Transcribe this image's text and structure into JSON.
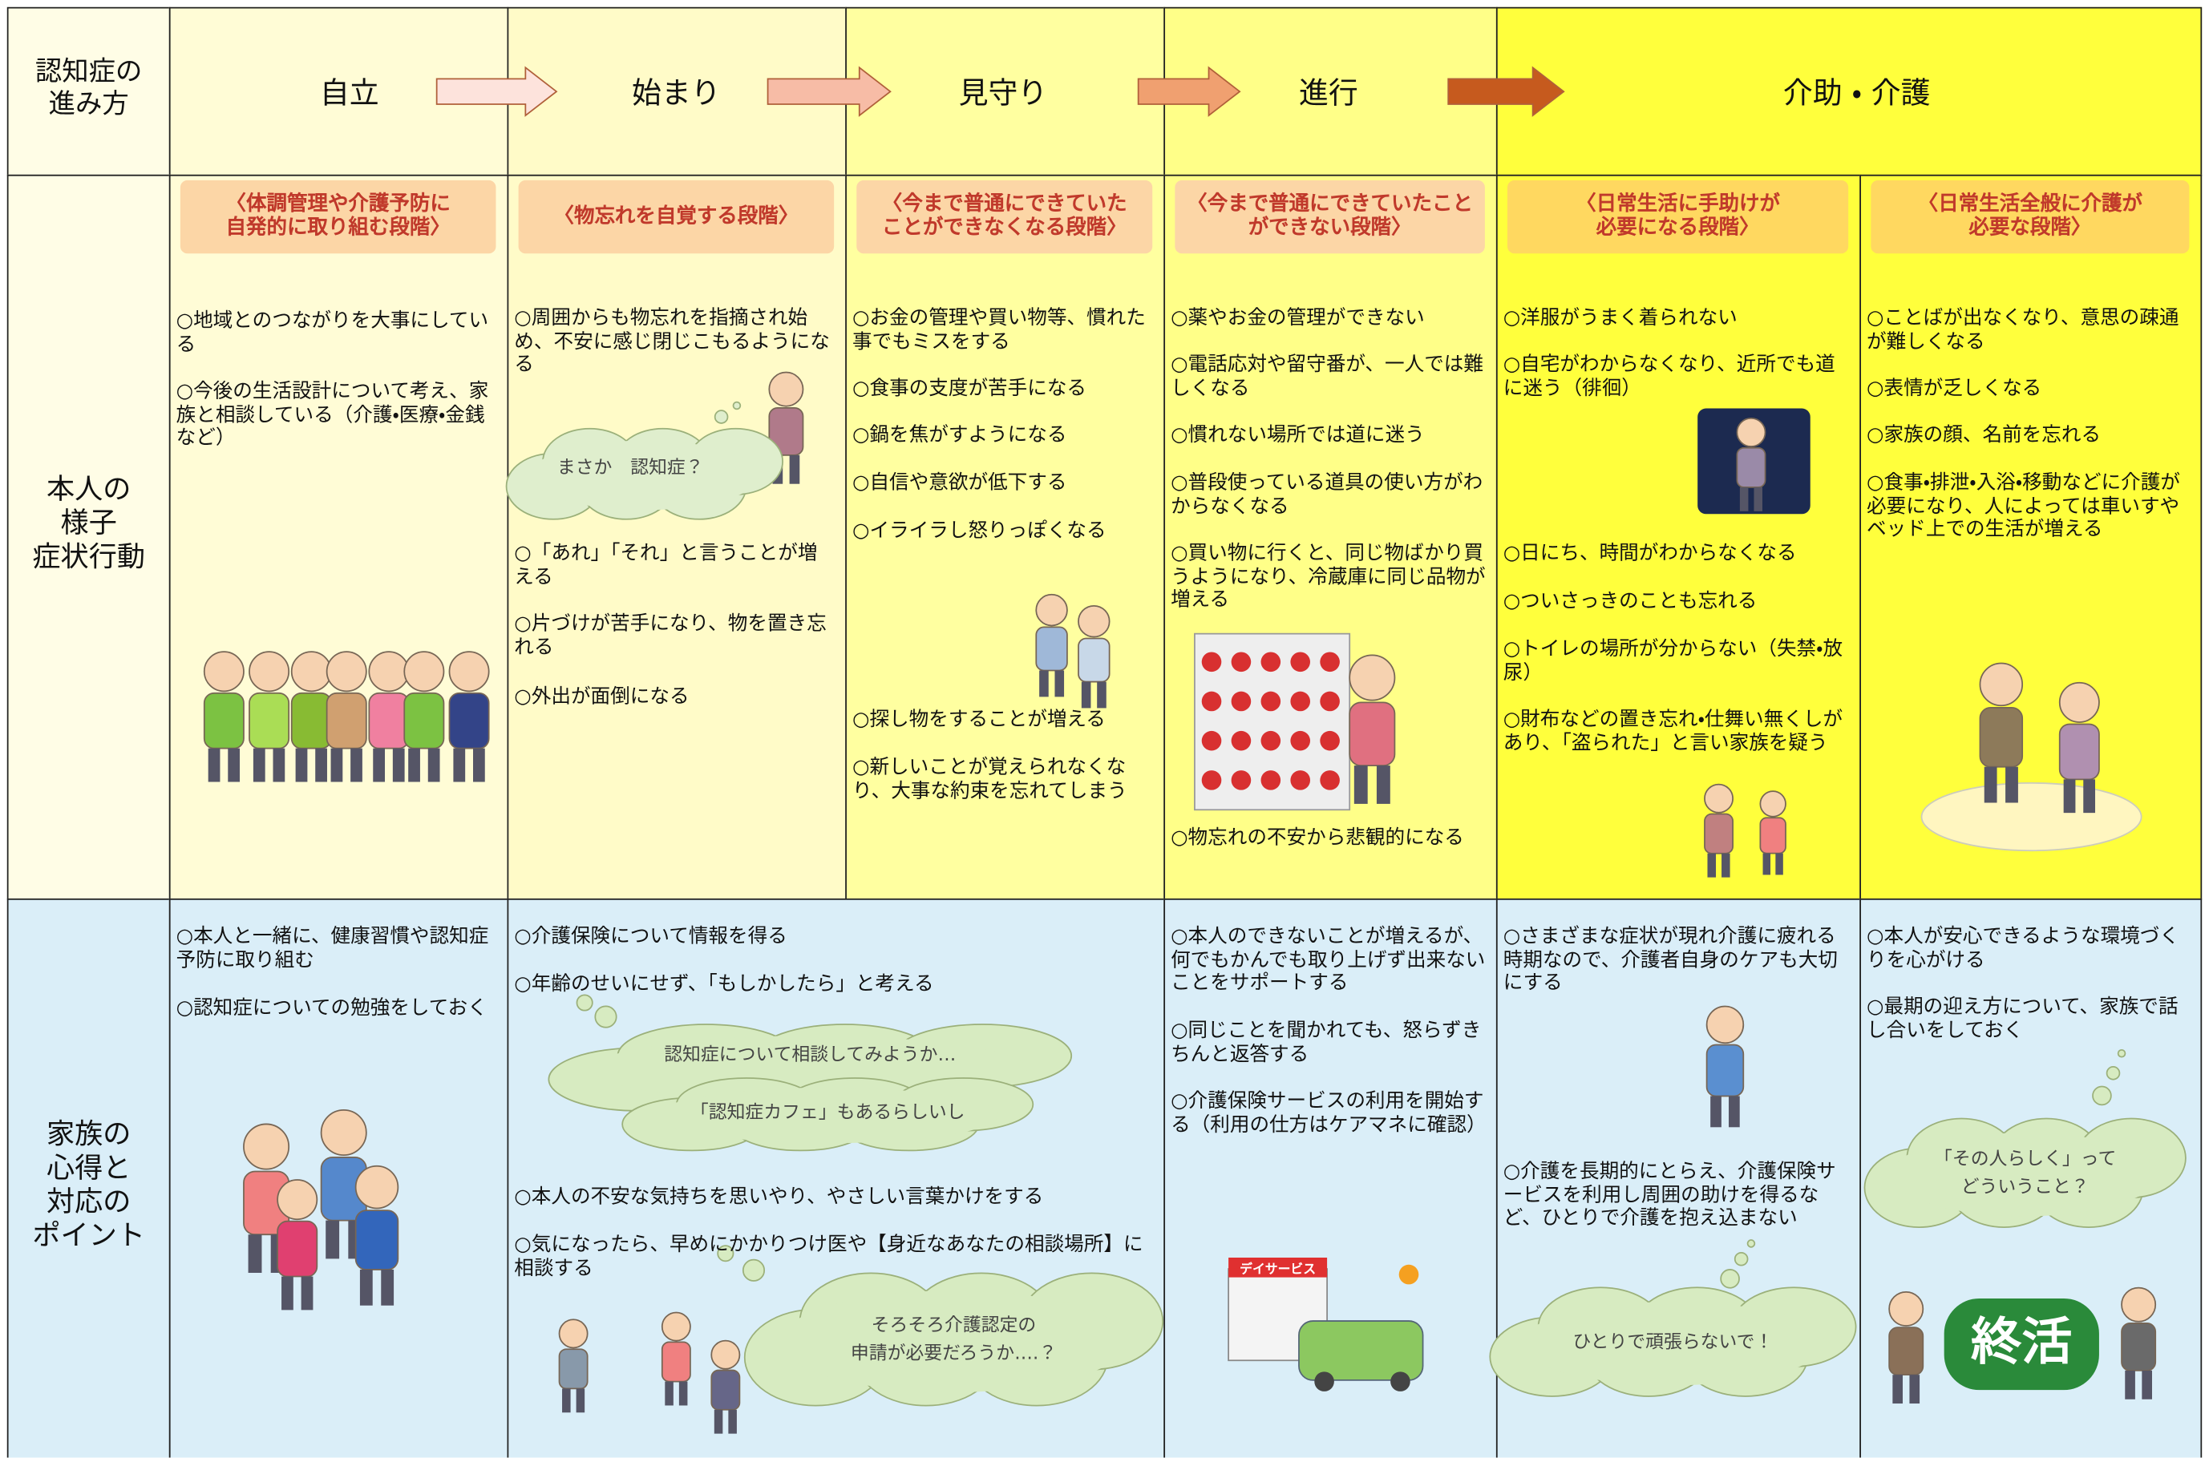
{
  "header": {
    "corner": [
      "認知症の",
      "進み方"
    ],
    "stages": [
      "自立",
      "始まり",
      "見守り",
      "進行",
      "介助 ・ 介護"
    ]
  },
  "symptoms": {
    "label": [
      "本人の",
      "様子",
      "症状行動"
    ],
    "columns": [
      {
        "banner": [
          "〈体調管理や介護予防に",
          "自発的に取り組む段階〉"
        ],
        "items": [
          "○地域とのつながりを大事にしている",
          "○今後の生活設計について考え、家族と相談している（介護・医療・金銭など）"
        ]
      },
      {
        "banner": [
          "〈物忘れを自覚する段階〉"
        ],
        "items": [
          "○周囲からも物忘れを指摘され始め、不安に感じ閉じこもるようになる",
          "○「あれ」「それ」と言うことが増える",
          "○片づけが苦手になり、物を置き忘れる",
          "○外出が面倒になる"
        ],
        "bubble": [
          "まさか　認知症？"
        ]
      },
      {
        "banner": [
          "〈今まで普通にできていた",
          "ことができなくなる段階〉"
        ],
        "items": [
          "○お金の管理や買い物等、慣れた事でもミスをする",
          "○食事の支度が苦手になる",
          "○鍋を焦がすようになる",
          "○自信や意欲が低下する",
          "○イライラし怒りっぽくなる",
          "○探し物をすることが増える",
          "○新しいことが覚えられなくなり、大事な約束を忘れてしまう"
        ]
      },
      {
        "banner": [
          "〈今まで普通にできていたこと",
          "ができない段階〉"
        ],
        "items": [
          "○薬やお金の管理ができない",
          "○電話応対や留守番が、一人では難しくなる",
          "○慣れない場所では道に迷う",
          "○普段使っている道具の使い方がわからなくなる",
          "○買い物に行くと、同じ物ばかり買うようになり、冷蔵庫に同じ品物が増える",
          "○物忘れの不安から悲観的になる"
        ]
      },
      {
        "banner": [
          "〈日常生活に手助けが",
          "必要になる段階〉"
        ],
        "items": [
          "○洋服がうまく着られない",
          "○自宅がわからなくなり、近所でも道に迷う（徘徊）",
          "○日にち、時間がわからなくなる",
          "○ついさっきのことも忘れる",
          "○トイレの場所が分からない（失禁・放尿）",
          "○財布などの置き忘れ・仕舞い無くしがあり、「盗られた」と言い家族を疑う"
        ]
      },
      {
        "banner": [
          "〈日常生活全般に介護が",
          "必要な段階〉"
        ],
        "items": [
          "○ことばが出なくなり、意思の疎通が難しくなる",
          "○表情が乏しくなる",
          "○家族の顔、名前を忘れる",
          "○食事・排泄・入浴・移動などに介護が必要になり、人によっては車いすやベッド上での生活が増える"
        ]
      }
    ]
  },
  "family": {
    "label": [
      "家族の",
      "心得と",
      "対応の",
      "ポイント"
    ],
    "columns": [
      {
        "items": [
          "○本人と一緒に、健康習慣や認知症予防に取り組む",
          "○認知症についての勉強をしておく"
        ]
      },
      {
        "items": [
          "○介護保険について情報を得る",
          "○年齢のせいにせず、「もしかしたら」と考える",
          "○本人の不安な気持ちを思いやり、やさしい言葉かけをする",
          "○気になったら、早めにかかりつけ医や【身近なあなたの相談場所】に相談する"
        ],
        "bubbles": [
          [
            "認知症について相談してみようか…"
          ],
          [
            "「認知症カフェ」もあるらしいし"
          ],
          [
            "そろそろ介護認定の",
            "申請が必要だろうか….？"
          ]
        ]
      },
      {
        "items": [
          "○本人のできないことが増えるが、何でもかんでも取り上げず出来ないことをサポートする",
          "○同じことを聞かれても、怒らずきちんと返答する",
          "○介護保険サービスの利用を開始する（利用の仕方はケアマネに確認）"
        ],
        "sign": "デイサービス"
      },
      {
        "items": [
          "○さまざまな症状が現れ介護に疲れる時期なので、介護者自身のケアも大切にする",
          "○介護を長期的にとらえ、介護保険サービスを利用し周囲の助けを得るなど、ひとりで介護を抱え込まない"
        ],
        "bubbles": [
          [
            "ひとりで頑張らないで！"
          ]
        ]
      },
      {
        "items": [
          "○本人が安心できるような環境づくりを心がける",
          "○最期の迎え方について、家族で話し合いをしておく"
        ],
        "bubbles": [
          [
            "「その人らしく」って",
            "どういうこと？"
          ]
        ],
        "sign": "終活"
      }
    ]
  }
}
